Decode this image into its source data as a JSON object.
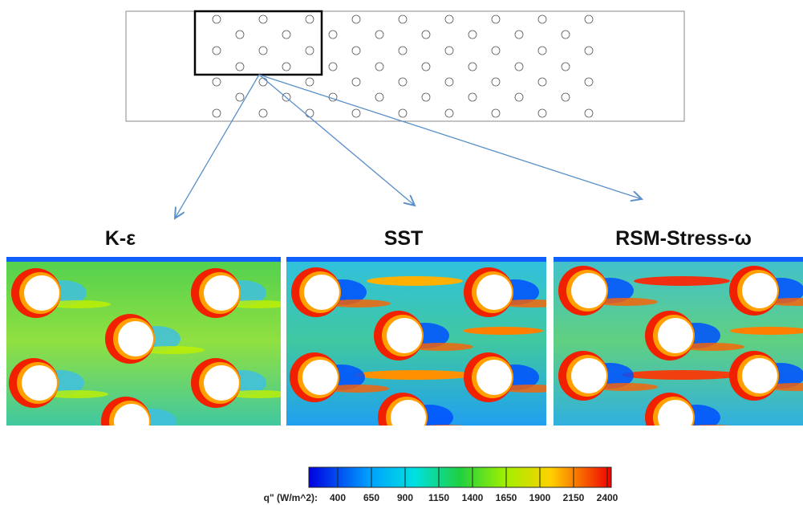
{
  "panels": [
    {
      "title": "K-ε"
    },
    {
      "title": "SST"
    },
    {
      "title": "RSM-Stress-ω"
    }
  ],
  "colorbar": {
    "label": "q\" (W/m^2):",
    "range": [
      400,
      2400
    ],
    "ticks": [
      400,
      650,
      900,
      1150,
      1400,
      1650,
      1900,
      2150,
      2400
    ]
  }
}
